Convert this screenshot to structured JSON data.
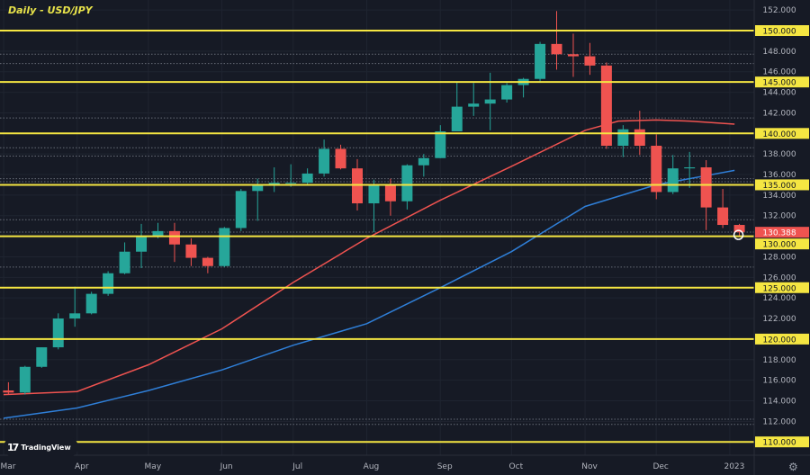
{
  "chart_data": {
    "type": "candlestick",
    "title": "Daily - USD/JPY",
    "ylim": [
      108.4,
      153
    ],
    "y_ticks": [
      112,
      114,
      116,
      118,
      120,
      122,
      124,
      126,
      128,
      130,
      132,
      134,
      136,
      138,
      140,
      142,
      144,
      146,
      148,
      150,
      152
    ],
    "x_tick_labels": [
      {
        "date": "2022-03-01",
        "label": "Mar"
      },
      {
        "date": "2022-04-01",
        "label": "Apr"
      },
      {
        "date": "2022-05-01",
        "label": "May"
      },
      {
        "date": "2022-06-01",
        "label": "Jun"
      },
      {
        "date": "2022-07-01",
        "label": "Jul"
      },
      {
        "date": "2022-08-01",
        "label": "Aug"
      },
      {
        "date": "2022-09-01",
        "label": "Sep"
      },
      {
        "date": "2022-10-01",
        "label": "Oct"
      },
      {
        "date": "2022-11-01",
        "label": "Nov"
      },
      {
        "date": "2022-12-01",
        "label": "Dec"
      },
      {
        "date": "2023-01-01",
        "label": "2023"
      }
    ],
    "grid": true,
    "colors": {
      "up": "#26a69a",
      "down": "#ef5350",
      "level": "#f5e642",
      "ma_fast": "#ef5350",
      "ma_slow": "#2f7fd8",
      "background": "#161a25",
      "last_price": "#ef5350"
    },
    "candles": [
      [
        "2022-02-28",
        115.0,
        115.8,
        114.6,
        114.8
      ],
      [
        "2022-03-07",
        114.8,
        117.4,
        114.6,
        117.3
      ],
      [
        "2022-03-14",
        117.3,
        119.2,
        117.2,
        119.2
      ],
      [
        "2022-03-21",
        119.2,
        122.5,
        119.0,
        122.0
      ],
      [
        "2022-03-28",
        122.0,
        125.1,
        121.2,
        122.5
      ],
      [
        "2022-04-04",
        122.5,
        124.6,
        122.4,
        124.4
      ],
      [
        "2022-04-11",
        124.4,
        126.6,
        124.2,
        126.4
      ],
      [
        "2022-04-18",
        126.4,
        129.4,
        126.3,
        128.5
      ],
      [
        "2022-04-25",
        128.5,
        131.2,
        126.9,
        130.0
      ],
      [
        "2022-05-02",
        130.0,
        131.3,
        129.8,
        130.5
      ],
      [
        "2022-05-09",
        130.5,
        131.3,
        127.5,
        129.2
      ],
      [
        "2022-05-16",
        129.2,
        129.8,
        127.1,
        127.9
      ],
      [
        "2022-05-23",
        127.9,
        128.0,
        126.4,
        127.1
      ],
      [
        "2022-05-30",
        127.1,
        130.9,
        127.0,
        130.8
      ],
      [
        "2022-06-06",
        130.8,
        134.6,
        130.5,
        134.4
      ],
      [
        "2022-06-13",
        134.4,
        135.6,
        131.5,
        135.0
      ],
      [
        "2022-06-20",
        135.0,
        136.7,
        134.3,
        135.2
      ],
      [
        "2022-06-27",
        135.2,
        137.0,
        134.8,
        135.2
      ],
      [
        "2022-07-04",
        135.2,
        136.6,
        135.0,
        136.1
      ],
      [
        "2022-07-11",
        136.1,
        139.4,
        135.8,
        138.5
      ],
      [
        "2022-07-18",
        138.5,
        138.9,
        136.5,
        136.6
      ],
      [
        "2022-07-25",
        136.6,
        137.5,
        132.5,
        133.2
      ],
      [
        "2022-08-01",
        133.2,
        135.5,
        130.4,
        135.0
      ],
      [
        "2022-08-08",
        135.0,
        135.6,
        132.0,
        133.4
      ],
      [
        "2022-08-15",
        133.4,
        137.0,
        132.6,
        136.9
      ],
      [
        "2022-08-22",
        136.9,
        138.0,
        135.8,
        137.6
      ],
      [
        "2022-08-29",
        137.6,
        140.8,
        137.6,
        140.2
      ],
      [
        "2022-09-05",
        140.2,
        145.0,
        140.2,
        142.6
      ],
      [
        "2022-09-12",
        142.6,
        144.9,
        141.7,
        142.9
      ],
      [
        "2022-09-19",
        142.9,
        145.9,
        140.3,
        143.3
      ],
      [
        "2022-09-26",
        143.3,
        144.9,
        143.0,
        144.7
      ],
      [
        "2022-10-03",
        144.7,
        145.4,
        143.5,
        145.3
      ],
      [
        "2022-10-10",
        145.3,
        148.9,
        145.0,
        148.7
      ],
      [
        "2022-10-17",
        148.7,
        151.9,
        146.2,
        147.7
      ],
      [
        "2022-10-24",
        147.7,
        149.7,
        145.5,
        147.5
      ],
      [
        "2022-10-31",
        147.5,
        148.8,
        145.7,
        146.6
      ],
      [
        "2022-11-07",
        146.6,
        146.9,
        138.5,
        138.8
      ],
      [
        "2022-11-14",
        138.8,
        140.8,
        137.7,
        140.4
      ],
      [
        "2022-11-21",
        140.4,
        142.2,
        137.9,
        138.8
      ],
      [
        "2022-11-28",
        138.8,
        139.9,
        133.6,
        134.3
      ],
      [
        "2022-12-05",
        134.3,
        137.9,
        134.1,
        136.6
      ],
      [
        "2022-12-12",
        136.6,
        138.2,
        134.7,
        136.7
      ],
      [
        "2022-12-19",
        136.7,
        137.4,
        130.6,
        132.8
      ],
      [
        "2022-12-26",
        132.8,
        134.6,
        130.8,
        131.1
      ],
      [
        "2023-01-02",
        131.1,
        131.2,
        130.0,
        130.388
      ]
    ],
    "ma_fast": [
      [
        "2022-03-01",
        114.6
      ],
      [
        "2022-04-01",
        114.9
      ],
      [
        "2022-05-01",
        117.5
      ],
      [
        "2022-06-01",
        121.0
      ],
      [
        "2022-07-01",
        125.5
      ],
      [
        "2022-08-01",
        129.8
      ],
      [
        "2022-09-01",
        133.5
      ],
      [
        "2022-10-01",
        136.8
      ],
      [
        "2022-11-01",
        140.3
      ],
      [
        "2022-11-15",
        141.2
      ],
      [
        "2022-12-01",
        141.3
      ],
      [
        "2022-12-15",
        141.2
      ],
      [
        "2023-01-03",
        140.9
      ]
    ],
    "ma_slow": [
      [
        "2022-03-01",
        112.3
      ],
      [
        "2022-04-01",
        113.3
      ],
      [
        "2022-05-01",
        115.0
      ],
      [
        "2022-06-01",
        117.0
      ],
      [
        "2022-07-01",
        119.4
      ],
      [
        "2022-08-01",
        121.5
      ],
      [
        "2022-09-01",
        125.0
      ],
      [
        "2022-10-01",
        128.5
      ],
      [
        "2022-11-01",
        132.9
      ],
      [
        "2022-12-01",
        135.0
      ],
      [
        "2023-01-03",
        136.4
      ]
    ],
    "levels": [
      150,
      145,
      140,
      135,
      130,
      125,
      120,
      110
    ],
    "level_labels": [
      "150.000",
      "145.000",
      "140.000",
      "135.000",
      "130.000",
      "125.000",
      "120.000",
      "110.000"
    ],
    "dotted_levels": [
      147.7,
      146.8,
      141.5,
      138.6,
      137.8,
      135.6,
      135.3,
      131.6,
      130.4,
      127.0,
      112.2,
      111.7
    ],
    "last_price": 130.388,
    "last_price_label": "130.388"
  },
  "branding": {
    "logo": "TradingView"
  }
}
